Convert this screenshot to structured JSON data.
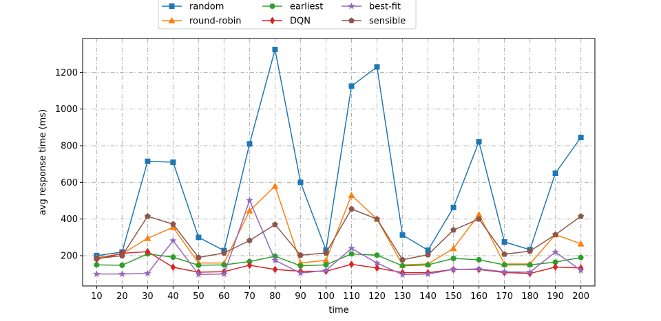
{
  "chart_data": {
    "type": "line",
    "title": "",
    "xlabel": "time",
    "ylabel": "avg response time (ms)",
    "x": [
      10,
      20,
      30,
      40,
      50,
      60,
      70,
      80,
      90,
      100,
      110,
      120,
      130,
      140,
      150,
      160,
      170,
      180,
      190,
      200
    ],
    "xticks": [
      10,
      20,
      30,
      40,
      50,
      60,
      70,
      80,
      90,
      100,
      110,
      120,
      130,
      140,
      150,
      160,
      170,
      180,
      190,
      200
    ],
    "yticks": [
      200,
      400,
      600,
      800,
      1000,
      1200
    ],
    "xlim": [
      4.5,
      205.5
    ],
    "ylim": [
      35,
      1385
    ],
    "grid": true,
    "grid_style": "dash-dot",
    "legend_position": "top-center",
    "series": [
      {
        "name": "random",
        "color": "#1f77b4",
        "marker": "square",
        "values": [
          200,
          220,
          715,
          710,
          300,
          228,
          810,
          1325,
          600,
          230,
          1125,
          1230,
          313,
          230,
          463,
          822,
          275,
          233,
          650,
          845
        ]
      },
      {
        "name": "round-robin",
        "color": "#ff7f0e",
        "marker": "triangle",
        "values": [
          190,
          210,
          295,
          355,
          160,
          160,
          445,
          580,
          160,
          175,
          530,
          400,
          150,
          155,
          240,
          425,
          155,
          155,
          315,
          265
        ]
      },
      {
        "name": "earliest",
        "color": "#2ca02c",
        "marker": "circle",
        "values": [
          150,
          148,
          210,
          192,
          148,
          150,
          168,
          197,
          145,
          150,
          210,
          203,
          145,
          150,
          185,
          178,
          150,
          150,
          165,
          190
        ]
      },
      {
        "name": "DQN",
        "color": "#d62728",
        "marker": "diamond",
        "values": [
          180,
          213,
          222,
          137,
          110,
          113,
          148,
          125,
          115,
          115,
          153,
          133,
          108,
          107,
          125,
          125,
          108,
          103,
          138,
          133
        ]
      },
      {
        "name": "best-fit",
        "color": "#9467bd",
        "marker": "star",
        "values": [
          100,
          100,
          103,
          282,
          98,
          100,
          502,
          175,
          105,
          120,
          240,
          160,
          97,
          100,
          125,
          128,
          112,
          110,
          220,
          120
        ]
      },
      {
        "name": "sensible",
        "color": "#8c564b",
        "marker": "pentagon",
        "values": [
          185,
          200,
          415,
          372,
          190,
          215,
          283,
          370,
          203,
          215,
          455,
          400,
          178,
          205,
          340,
          400,
          208,
          225,
          315,
          415
        ]
      }
    ]
  }
}
